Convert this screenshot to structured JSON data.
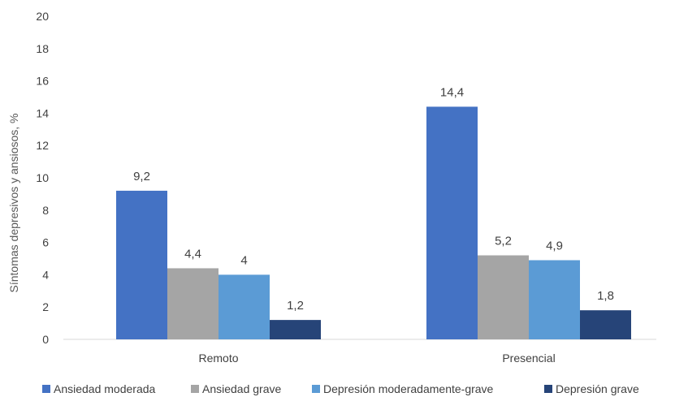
{
  "chart_data": {
    "type": "bar",
    "title": "",
    "xlabel": "",
    "ylabel": "Síntomas depresivos y ansiosos, %",
    "ylim": [
      0,
      20
    ],
    "yticks": [
      0,
      2,
      4,
      6,
      8,
      10,
      12,
      14,
      16,
      18,
      20
    ],
    "grid": false,
    "legend_position": "bottom",
    "categories": [
      "Remoto",
      "Presencial"
    ],
    "series": [
      {
        "name": "Ansiedad moderada",
        "color": "#4472C4",
        "values": [
          9.2,
          14.4
        ],
        "labels": [
          "9,2",
          "14,4"
        ]
      },
      {
        "name": "Ansiedad  grave",
        "color": "#A5A5A5",
        "values": [
          4.4,
          5.2
        ],
        "labels": [
          "4,4",
          "5,2"
        ]
      },
      {
        "name": "Depresión  moderadamente-grave",
        "color": "#5B9BD5",
        "values": [
          4,
          4.9
        ],
        "labels": [
          "4",
          "4,9"
        ]
      },
      {
        "name": "Depresión  grave",
        "color": "#264478",
        "values": [
          1.2,
          1.8
        ],
        "labels": [
          "1,2",
          "1,8"
        ]
      }
    ]
  }
}
